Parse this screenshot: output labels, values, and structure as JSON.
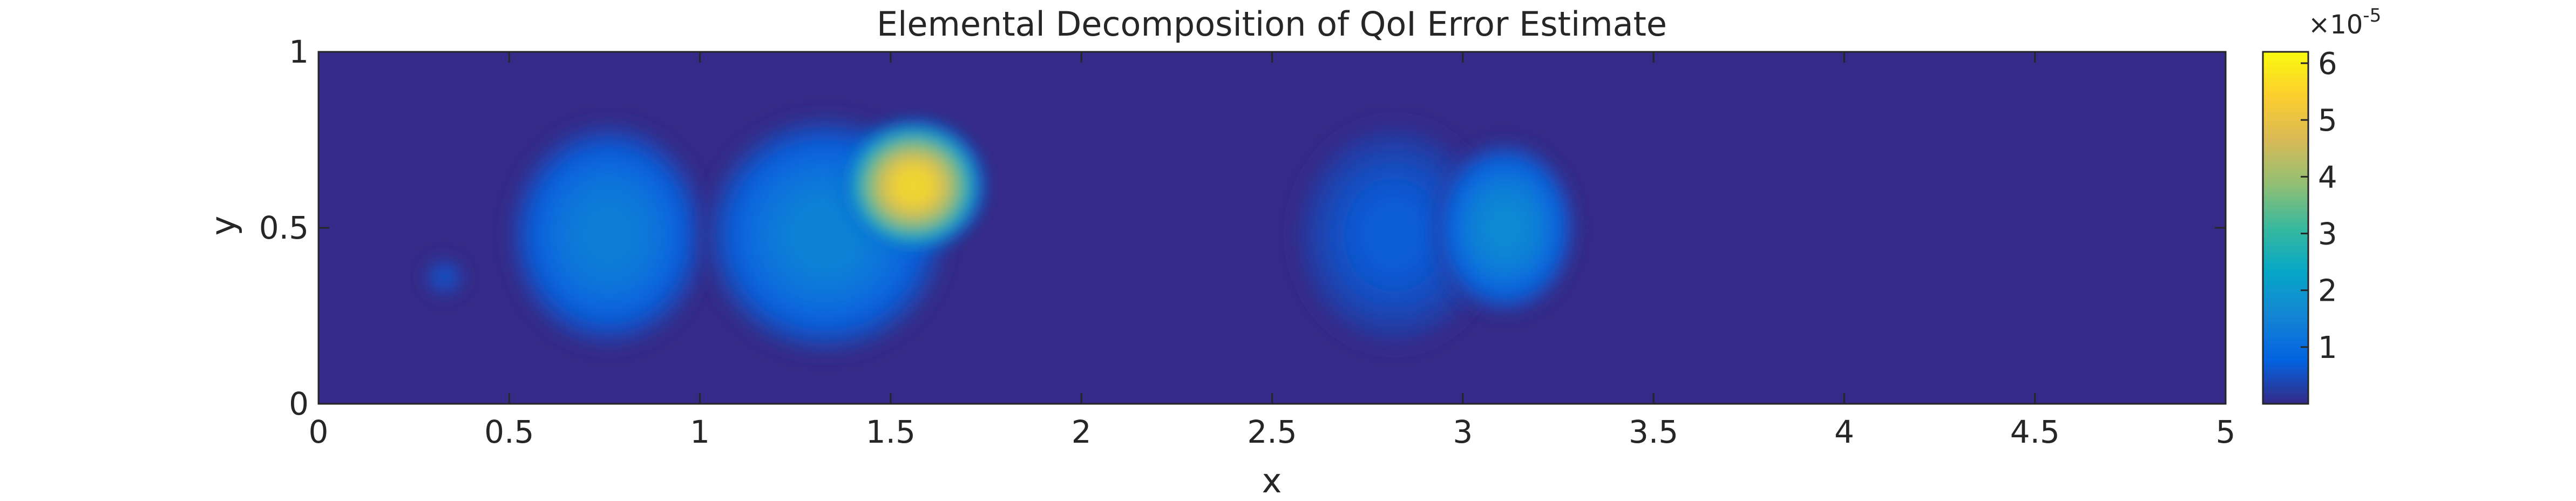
{
  "chart_data": {
    "type": "heatmap",
    "title": "Elemental Decomposition of QoI Error Estimate",
    "xlabel": "x",
    "ylabel": "y",
    "xlim": [
      0,
      5
    ],
    "ylim": [
      0,
      1
    ],
    "x_ticks": [
      {
        "value": 0,
        "label": "0"
      },
      {
        "value": 0.5,
        "label": "0.5"
      },
      {
        "value": 1,
        "label": "1"
      },
      {
        "value": 1.5,
        "label": "1.5"
      },
      {
        "value": 2,
        "label": "2"
      },
      {
        "value": 2.5,
        "label": "2.5"
      },
      {
        "value": 3,
        "label": "3"
      },
      {
        "value": 3.5,
        "label": "3.5"
      },
      {
        "value": 4,
        "label": "4"
      },
      {
        "value": 4.5,
        "label": "4.5"
      },
      {
        "value": 5,
        "label": "5"
      }
    ],
    "y_ticks": [
      {
        "value": 0,
        "label": "0"
      },
      {
        "value": 0.5,
        "label": "0.5"
      },
      {
        "value": 1,
        "label": "1"
      }
    ],
    "colorbar": {
      "colormap": "parula",
      "range": [
        0,
        6.2
      ],
      "exponent_label": "×10",
      "exponent_power": "-5",
      "ticks": [
        {
          "value": 1,
          "label": "1"
        },
        {
          "value": 2,
          "label": "2"
        },
        {
          "value": 3,
          "label": "3"
        },
        {
          "value": 4,
          "label": "4"
        },
        {
          "value": 5,
          "label": "5"
        },
        {
          "value": 6,
          "label": "6"
        }
      ],
      "stops": [
        "#352a87",
        "#0363e1",
        "#1485d4",
        "#06a7c6",
        "#38b99e",
        "#92bf73",
        "#d9ba56",
        "#fcce2e",
        "#f9fb0e"
      ]
    },
    "blobs": [
      {
        "x": 0.33,
        "y": 0.36,
        "rx": 0.06,
        "ry": 0.06,
        "peak": 0.6
      },
      {
        "x": 0.76,
        "y": 0.48,
        "rx": 0.28,
        "ry": 0.34,
        "peak": 1.6
      },
      {
        "x": 1.33,
        "y": 0.48,
        "rx": 0.34,
        "ry": 0.36,
        "peak": 1.7
      },
      {
        "x": 1.56,
        "y": 0.62,
        "rx": 0.2,
        "ry": 0.2,
        "peak": 6.2
      },
      {
        "x": 2.82,
        "y": 0.48,
        "rx": 0.28,
        "ry": 0.34,
        "peak": 0.8
      },
      {
        "x": 3.11,
        "y": 0.5,
        "rx": 0.2,
        "ry": 0.26,
        "peak": 1.9
      }
    ]
  }
}
